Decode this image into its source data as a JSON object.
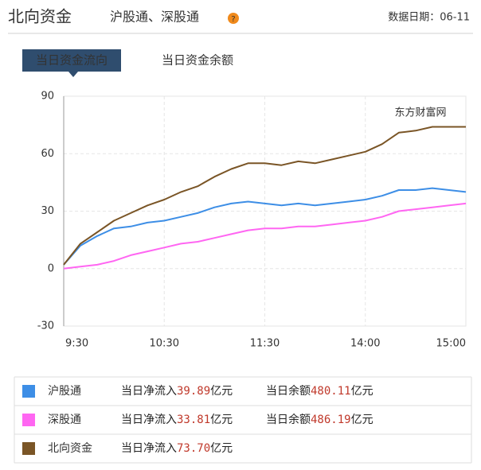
{
  "header": {
    "title": "北向资金",
    "subtitle": "沪股通、深股通",
    "date": "数据日期：06-11"
  },
  "tabs": [
    "当日资金流向",
    "当日资金余额"
  ],
  "chart_data": {
    "type": "line",
    "watermark": "东方财富网",
    "categories": [
      "9:30",
      null,
      null,
      null,
      null,
      null,
      "10:30",
      null,
      null,
      null,
      null,
      null,
      "11:30",
      null,
      null,
      null,
      null,
      null,
      "14:00",
      null,
      null,
      null,
      null,
      null,
      "15:00"
    ],
    "series": [
      {
        "name": "沪股通",
        "color": "#3d8ee6",
        "values": [
          2,
          12,
          17,
          21,
          22,
          24,
          25,
          27,
          29,
          32,
          34,
          35,
          34,
          33,
          34,
          33,
          34,
          35,
          36,
          38,
          41,
          41,
          42,
          41,
          40
        ]
      },
      {
        "name": "深股通",
        "color": "#ff66f2",
        "values": [
          0,
          1,
          2,
          4,
          7,
          9,
          11,
          13,
          14,
          16,
          18,
          20,
          21,
          21,
          22,
          22,
          23,
          24,
          25,
          27,
          30,
          31,
          32,
          33,
          34
        ]
      },
      {
        "name": "北向资金",
        "color": "#7a5526",
        "values": [
          2,
          13,
          19,
          25,
          29,
          33,
          36,
          40,
          43,
          48,
          52,
          55,
          55,
          54,
          56,
          55,
          57,
          59,
          61,
          65,
          71,
          72,
          74,
          74,
          74
        ]
      }
    ],
    "ylim": [
      -30,
      90
    ],
    "yticks": [
      -30,
      0,
      30,
      60,
      90
    ],
    "grid": true
  },
  "summary": {
    "rows": [
      {
        "net_label": "当日净流入",
        "net_value": "39.89",
        "net_unit": "亿元",
        "balance_label": "当日余额",
        "balance_value": "480.11",
        "balance_unit": "亿元"
      },
      {
        "net_label": "当日净流入",
        "net_value": "33.81",
        "net_unit": "亿元",
        "balance_label": "当日余额",
        "balance_value": "486.19",
        "balance_unit": "亿元"
      },
      {
        "net_label": "当日净流入",
        "net_value": "73.70",
        "net_unit": "亿元"
      }
    ]
  }
}
